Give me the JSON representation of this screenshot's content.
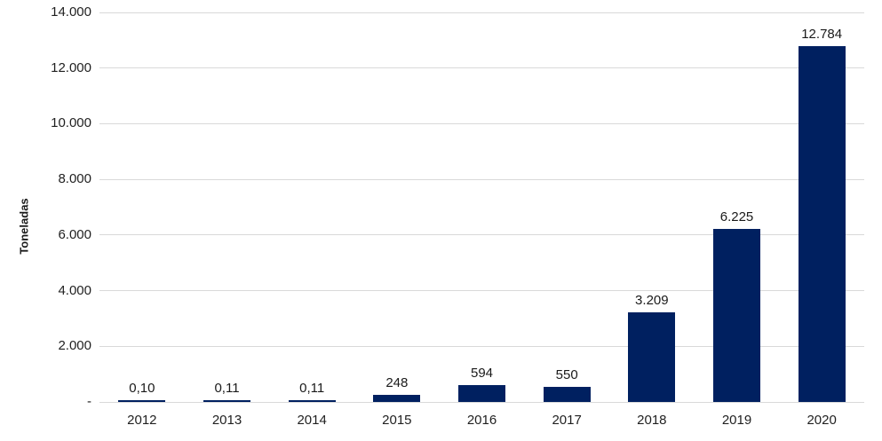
{
  "chart_data": {
    "type": "bar",
    "title": "",
    "xlabel": "",
    "ylabel": "Toneladas",
    "categories": [
      "2012",
      "2013",
      "2014",
      "2015",
      "2016",
      "2017",
      "2018",
      "2019",
      "2020"
    ],
    "values": [
      0.1,
      0.11,
      0.11,
      248,
      594,
      550,
      3209,
      6225,
      12784
    ],
    "value_labels": [
      "0,10",
      "0,11",
      "0,11",
      "248",
      "594",
      "550",
      "3.209",
      "6.225",
      "12.784"
    ],
    "ylim": [
      0,
      14000
    ],
    "y_ticks": {
      "values": [
        14000,
        12000,
        10000,
        8000,
        6000,
        4000,
        2000,
        0
      ],
      "labels": [
        "14.000",
        "12.000",
        "10.000",
        "8.000",
        "6.000",
        "4.000",
        "2.000",
        "-"
      ]
    },
    "grid": "horizontal",
    "legend": "none",
    "colors": {
      "bar": "#002060",
      "gridline": "#d9d9d9",
      "text": "#1a1a1a"
    }
  }
}
